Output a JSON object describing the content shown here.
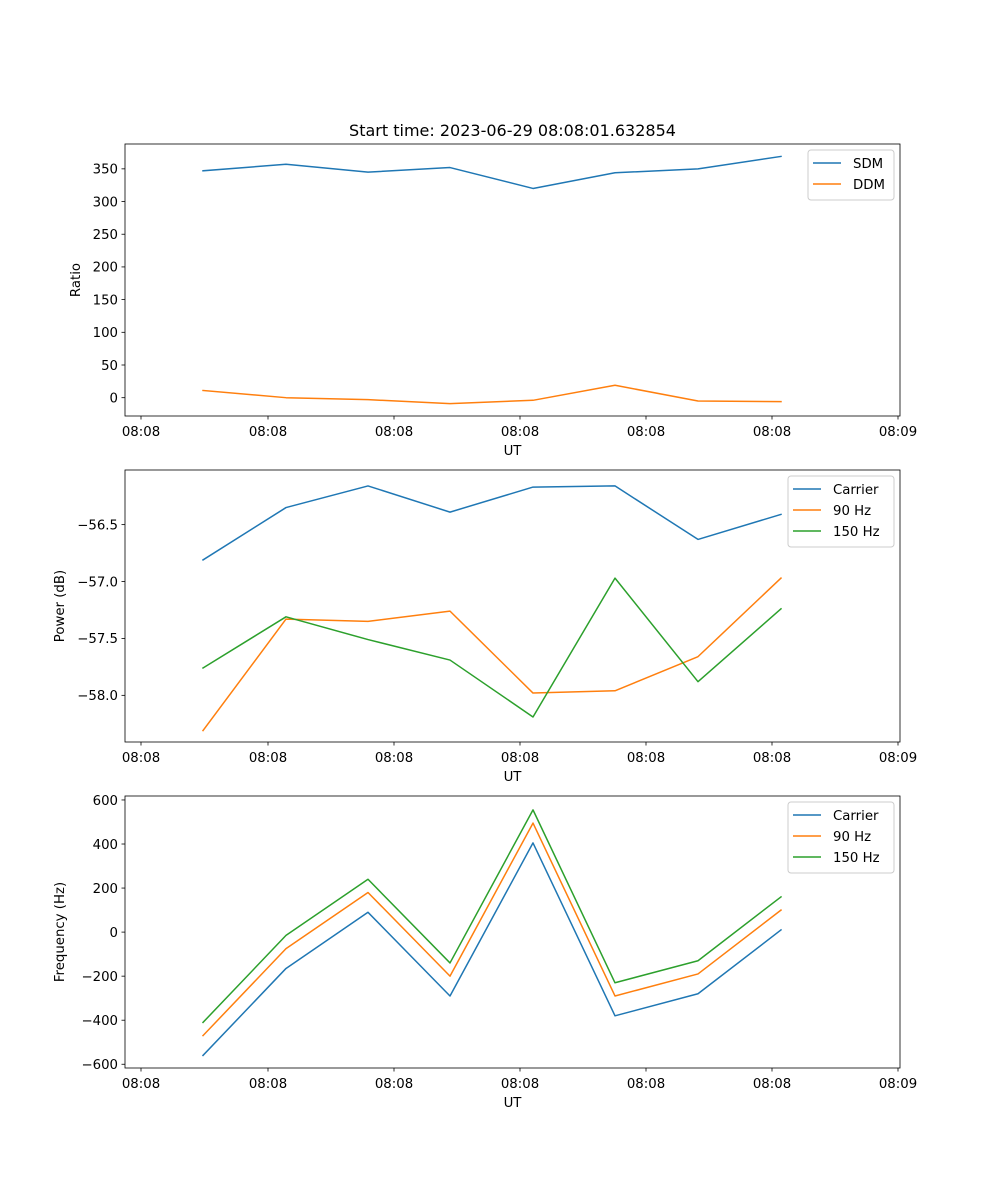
{
  "figure": {
    "title": "Start time: 2023-06-29 08:08:01.632854"
  },
  "colors": {
    "blue": "#1f77b4",
    "orange": "#ff7f0e",
    "green": "#2ca02c"
  },
  "chart_data": [
    {
      "type": "line",
      "title": "Start time: 2023-06-29 08:08:01.632854",
      "xlabel": "UT",
      "ylabel": "Ratio",
      "x_tick_labels": [
        "08:08",
        "08:08",
        "08:08",
        "08:08",
        "08:08",
        "08:08",
        "08:09"
      ],
      "y_ticks": [
        0,
        50,
        100,
        150,
        200,
        250,
        300,
        350
      ],
      "ylim": [
        -28,
        388
      ],
      "grid": false,
      "legend_position": "top-right",
      "series": [
        {
          "name": "SDM",
          "color": "#1f77b4",
          "values": [
            347,
            357,
            345,
            352,
            320,
            344,
            350,
            369
          ]
        },
        {
          "name": "DDM",
          "color": "#ff7f0e",
          "values": [
            11,
            0,
            -3,
            -9,
            -4,
            19,
            -5,
            -6
          ]
        }
      ]
    },
    {
      "type": "line",
      "title": "",
      "xlabel": "UT",
      "ylabel": "Power (dB)",
      "x_tick_labels": [
        "08:08",
        "08:08",
        "08:08",
        "08:08",
        "08:08",
        "08:08",
        "08:09"
      ],
      "y_ticks": [
        -58.0,
        -57.5,
        -57.0,
        -56.5
      ],
      "y_tick_labels": [
        "−58.0",
        "−57.5",
        "−57.0",
        "−56.5"
      ],
      "ylim": [
        -58.41,
        -56.02
      ],
      "grid": false,
      "legend_position": "top-right",
      "series": [
        {
          "name": "Carrier",
          "color": "#1f77b4",
          "values": [
            -56.81,
            -56.35,
            -56.16,
            -56.39,
            -56.17,
            -56.16,
            -56.63,
            -56.41
          ]
        },
        {
          "name": "90 Hz",
          "color": "#ff7f0e",
          "values": [
            -58.31,
            -57.33,
            -57.35,
            -57.26,
            -57.98,
            -57.96,
            -57.66,
            -56.97
          ]
        },
        {
          "name": "150 Hz",
          "color": "#2ca02c",
          "values": [
            -57.76,
            -57.31,
            -57.51,
            -57.69,
            -58.19,
            -56.97,
            -57.88,
            -57.24
          ]
        }
      ]
    },
    {
      "type": "line",
      "title": "",
      "xlabel": "UT",
      "ylabel": "Frequency (Hz)",
      "x_tick_labels": [
        "08:08",
        "08:08",
        "08:08",
        "08:08",
        "08:08",
        "08:08",
        "08:09"
      ],
      "y_ticks": [
        -600,
        -400,
        -200,
        0,
        200,
        400,
        600
      ],
      "y_tick_labels": [
        "−600",
        "−400",
        "−200",
        "0",
        "200",
        "400",
        "600"
      ],
      "ylim": [
        -617,
        618
      ],
      "grid": false,
      "legend_position": "top-right",
      "series": [
        {
          "name": "Carrier",
          "color": "#1f77b4",
          "values": [
            -560,
            -165,
            90,
            -290,
            405,
            -380,
            -280,
            10
          ]
        },
        {
          "name": "90 Hz",
          "color": "#ff7f0e",
          "values": [
            -470,
            -75,
            180,
            -200,
            495,
            -290,
            -190,
            100
          ]
        },
        {
          "name": "150 Hz",
          "color": "#2ca02c",
          "values": [
            -410,
            -15,
            240,
            -140,
            555,
            -230,
            -130,
            160
          ]
        }
      ]
    }
  ]
}
